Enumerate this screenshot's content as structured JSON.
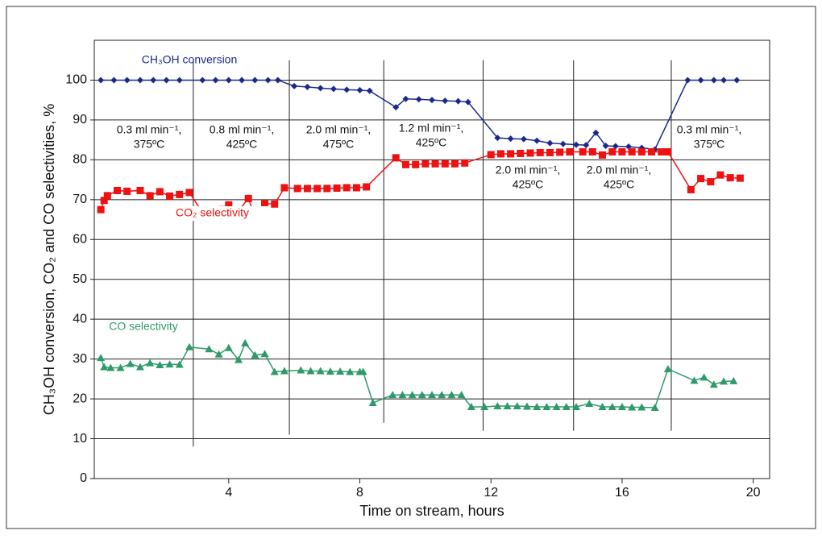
{
  "chart_data": {
    "type": "line",
    "x_label": "Time on stream, hours",
    "y_label": "CH₃OH conversion, CO₂ and CO selectivities, %",
    "xlim": [
      -0.1,
      20.5
    ],
    "xticks": [
      4,
      8,
      12,
      16,
      20
    ],
    "ylim": [
      0,
      110
    ],
    "yticks": [
      0,
      10,
      20,
      30,
      40,
      50,
      60,
      70,
      80,
      90,
      100
    ],
    "grid": true,
    "series": [
      {
        "name": "CH₃OH conversion",
        "color": "#1a2a8c",
        "marker": "diamond",
        "x": [
          0.1,
          0.5,
          0.9,
          1.3,
          1.7,
          2.1,
          2.5,
          3.2,
          3.6,
          4.0,
          4.4,
          4.8,
          5.2,
          5.5,
          6.0,
          6.4,
          6.8,
          7.2,
          7.6,
          8.0,
          8.3,
          9.1,
          9.4,
          9.8,
          10.2,
          10.6,
          11.0,
          11.3,
          12.2,
          12.6,
          13.0,
          13.4,
          13.8,
          14.2,
          14.6,
          14.9,
          15.2,
          15.5,
          15.8,
          16.2,
          16.6,
          17.0,
          18.0,
          18.4,
          18.8,
          19.1,
          19.5
        ],
        "values": [
          100,
          100,
          100,
          100,
          100,
          100,
          100,
          100,
          100,
          100,
          100,
          100,
          100,
          100,
          98.5,
          98.3,
          98,
          97.8,
          97.6,
          97.5,
          97.3,
          93.2,
          95.3,
          95.2,
          95,
          94.8,
          94.7,
          94.5,
          85.5,
          85.3,
          85.2,
          84.8,
          84.2,
          84,
          83.8,
          83.7,
          86.8,
          83.5,
          83.4,
          83.3,
          83,
          82.6,
          100,
          100,
          100,
          100,
          100
        ]
      },
      {
        "name": "CO₂ selectivity",
        "color": "#ee1111",
        "marker": "square",
        "x": [
          0.1,
          0.2,
          0.3,
          0.6,
          0.9,
          1.3,
          1.6,
          1.9,
          2.2,
          2.5,
          2.8,
          3.2,
          3.5,
          3.8,
          4.0,
          4.3,
          4.6,
          4.8,
          5.1,
          5.4,
          5.7,
          6.1,
          6.4,
          6.7,
          7.0,
          7.3,
          7.6,
          7.9,
          8.2,
          9.1,
          9.4,
          9.7,
          10.0,
          10.3,
          10.6,
          10.9,
          11.2,
          12.0,
          12.3,
          12.6,
          12.9,
          13.2,
          13.5,
          13.8,
          14.1,
          14.4,
          14.8,
          15.1,
          15.4,
          15.7,
          16.0,
          16.3,
          16.6,
          16.9,
          17.2,
          17.4,
          18.1,
          18.4,
          18.7,
          19.0,
          19.3,
          19.6
        ],
        "values": [
          67.5,
          69.8,
          71,
          72.3,
          72.1,
          72.3,
          71,
          72,
          70.9,
          71.3,
          71.8,
          66.8,
          67,
          67.5,
          68.7,
          67.2,
          70.3,
          65.8,
          69,
          68.9,
          73,
          72.8,
          72.8,
          72.8,
          72.8,
          72.9,
          73,
          73,
          73.2,
          80.5,
          78.8,
          78.8,
          79,
          79,
          79,
          79,
          79.2,
          81.3,
          81.5,
          81.5,
          81.6,
          81.7,
          81.8,
          81.8,
          81.9,
          82,
          82,
          82,
          81.2,
          82,
          82,
          82,
          82,
          82,
          82,
          82,
          72.5,
          75.3,
          74.5,
          76.2,
          75.5,
          75.4
        ]
      },
      {
        "name": "CO selectivity",
        "color": "#2e9a6a",
        "marker": "triangle",
        "x": [
          0.1,
          0.2,
          0.4,
          0.7,
          1.0,
          1.3,
          1.6,
          1.9,
          2.2,
          2.5,
          2.8,
          3.4,
          3.7,
          4.0,
          4.3,
          4.5,
          4.8,
          5.1,
          5.4,
          5.7,
          6.2,
          6.5,
          6.8,
          7.1,
          7.4,
          7.7,
          8.0,
          8.1,
          8.4,
          9.0,
          9.3,
          9.6,
          9.9,
          10.2,
          10.5,
          10.8,
          11.1,
          11.4,
          11.8,
          12.2,
          12.5,
          12.8,
          13.1,
          13.4,
          13.7,
          14.0,
          14.3,
          14.6,
          15.0,
          15.4,
          15.7,
          16.0,
          16.3,
          16.6,
          17.0,
          17.4,
          18.2,
          18.5,
          18.8,
          19.1,
          19.4
        ],
        "values": [
          30.3,
          28,
          27.8,
          27.8,
          28.8,
          28,
          29,
          28.5,
          28.7,
          28.6,
          33,
          32.5,
          31.2,
          32.8,
          29.8,
          34,
          31,
          31.3,
          26.8,
          27,
          27.2,
          27,
          27,
          26.9,
          26.9,
          26.8,
          26.8,
          26.8,
          19,
          21,
          21,
          21,
          21,
          21,
          21,
          21,
          21,
          18,
          18,
          18.2,
          18.2,
          18.2,
          18.1,
          18,
          18,
          18,
          18,
          18,
          18.8,
          18,
          18,
          18,
          17.9,
          17.9,
          17.8,
          27.5,
          24.6,
          25.4,
          23.6,
          24.4,
          24.5
        ]
      }
    ],
    "dividers": [
      {
        "x": 2.92,
        "y": [
          8,
          105
        ]
      },
      {
        "x": 5.85,
        "y": [
          11,
          105
        ]
      },
      {
        "x": 8.73,
        "y": [
          14,
          105
        ]
      },
      {
        "x": 11.76,
        "y": [
          12,
          105
        ]
      },
      {
        "x": 14.52,
        "y": [
          12,
          105
        ]
      },
      {
        "x": 17.5,
        "y": [
          12,
          105
        ]
      }
    ],
    "annotations": [
      [
        "0.3 ml min⁻¹,",
        "375ºC"
      ],
      [
        "0.8 ml min⁻¹,",
        "425ºC"
      ],
      [
        "2.0 ml min⁻¹,",
        "475ºC"
      ],
      [
        "1.2 ml min⁻¹,",
        "425ºC"
      ],
      [
        "2.0 ml min⁻¹,",
        "425ºC"
      ],
      [
        "2.0 ml min⁻¹,",
        "425ºC"
      ],
      [
        "0.3 ml min⁻¹,",
        "375ºC"
      ]
    ]
  }
}
